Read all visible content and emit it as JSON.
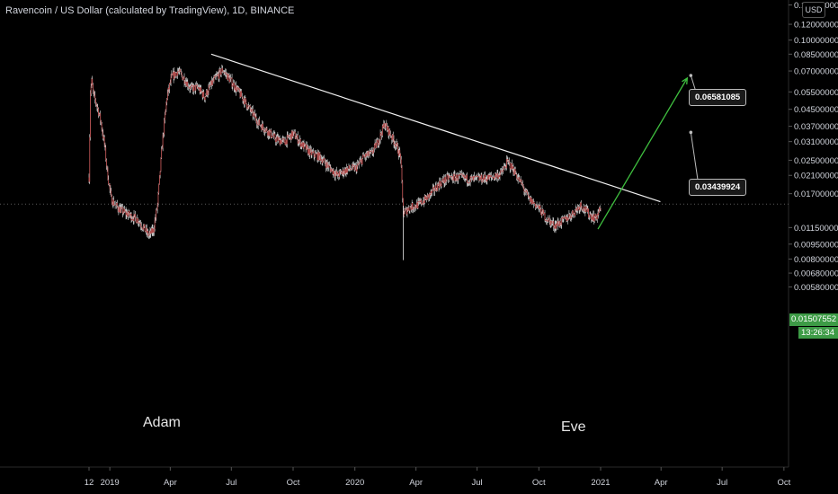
{
  "chart_data": {
    "type": "candlestick",
    "title": "Ravencoin / US Dollar (calculated by TradingView), 1D, BINANCE",
    "currency_badge": "USD",
    "yscale": "log",
    "ylim": [
      0.005,
      0.15
    ],
    "y_ticks": [
      "0.15000000",
      "0.12000000",
      "0.10000000",
      "0.08500000",
      "0.07000000",
      "0.05500000",
      "0.04500000",
      "0.03700000",
      "0.03100000",
      "0.02500000",
      "0.02100000",
      "0.01700000",
      "0.01150000",
      "0.00950000",
      "0.00800000",
      "0.00680000",
      "0.00580000"
    ],
    "x_ticks": [
      "12",
      "2019",
      "Apr",
      "Jul",
      "Oct",
      "2020",
      "Apr",
      "Jul",
      "Oct",
      "2021",
      "Apr",
      "Jul",
      "Oct"
    ],
    "grid": false,
    "series": [
      {
        "points": [
          [
            "2018-12-01",
            0.0205
          ],
          [
            "2018-12-03",
            0.055
          ],
          [
            "2018-12-05",
            0.062
          ],
          [
            "2018-12-08",
            0.052
          ],
          [
            "2018-12-12",
            0.048
          ],
          [
            "2018-12-18",
            0.04
          ],
          [
            "2018-12-24",
            0.03
          ],
          [
            "2018-12-28",
            0.022
          ],
          [
            "2019-01-03",
            0.016
          ],
          [
            "2019-01-10",
            0.0148
          ],
          [
            "2019-01-18",
            0.014
          ],
          [
            "2019-01-26",
            0.0135
          ],
          [
            "2019-02-04",
            0.013
          ],
          [
            "2019-02-12",
            0.0126
          ],
          [
            "2019-02-20",
            0.0115
          ],
          [
            "2019-02-28",
            0.0105
          ],
          [
            "2019-03-07",
            0.0112
          ],
          [
            "2019-03-13",
            0.015
          ],
          [
            "2019-03-20",
            0.03
          ],
          [
            "2019-03-27",
            0.052
          ],
          [
            "2019-04-03",
            0.065
          ],
          [
            "2019-04-12",
            0.07
          ],
          [
            "2019-04-22",
            0.064
          ],
          [
            "2019-05-02",
            0.057
          ],
          [
            "2019-05-12",
            0.058
          ],
          [
            "2019-05-22",
            0.052
          ],
          [
            "2019-06-01",
            0.06
          ],
          [
            "2019-06-10",
            0.066
          ],
          [
            "2019-06-18",
            0.071
          ],
          [
            "2019-06-28",
            0.064
          ],
          [
            "2019-07-10",
            0.056
          ],
          [
            "2019-07-20",
            0.05
          ],
          [
            "2019-08-01",
            0.043
          ],
          [
            "2019-08-12",
            0.038
          ],
          [
            "2019-08-24",
            0.035
          ],
          [
            "2019-09-05",
            0.032
          ],
          [
            "2019-09-18",
            0.031
          ],
          [
            "2019-10-01",
            0.034
          ],
          [
            "2019-10-14",
            0.03
          ],
          [
            "2019-10-28",
            0.027
          ],
          [
            "2019-11-10",
            0.026
          ],
          [
            "2019-11-24",
            0.023
          ],
          [
            "2019-12-06",
            0.021
          ],
          [
            "2019-12-20",
            0.0225
          ],
          [
            "2020-01-04",
            0.023
          ],
          [
            "2020-01-14",
            0.026
          ],
          [
            "2020-01-26",
            0.027
          ],
          [
            "2020-02-06",
            0.032
          ],
          [
            "2020-02-14",
            0.038
          ],
          [
            "2020-02-22",
            0.034
          ],
          [
            "2020-03-02",
            0.03
          ],
          [
            "2020-03-09",
            0.026
          ],
          [
            "2020-03-13",
            0.0135
          ],
          [
            "2020-03-22",
            0.0145
          ],
          [
            "2020-04-05",
            0.015
          ],
          [
            "2020-04-20",
            0.0165
          ],
          [
            "2020-05-05",
            0.019
          ],
          [
            "2020-05-20",
            0.0205
          ],
          [
            "2020-06-05",
            0.0205
          ],
          [
            "2020-06-22",
            0.02
          ],
          [
            "2020-07-06",
            0.0202
          ],
          [
            "2020-07-22",
            0.0205
          ],
          [
            "2020-08-06",
            0.0215
          ],
          [
            "2020-08-15",
            0.0245
          ],
          [
            "2020-08-24",
            0.0225
          ],
          [
            "2020-09-05",
            0.019
          ],
          [
            "2020-09-16",
            0.016
          ],
          [
            "2020-09-28",
            0.0148
          ],
          [
            "2020-10-12",
            0.0128
          ],
          [
            "2020-10-24",
            0.0118
          ],
          [
            "2020-11-06",
            0.0124
          ],
          [
            "2020-11-20",
            0.0135
          ],
          [
            "2020-12-02",
            0.015
          ],
          [
            "2020-12-14",
            0.0135
          ],
          [
            "2020-12-24",
            0.0128
          ],
          [
            "2021-01-02",
            0.0145
          ]
        ]
      }
    ],
    "trendline": {
      "from": [
        "2019-06-01",
        0.085
      ],
      "to": [
        "2021-03-31",
        0.0155
      ]
    },
    "projection_arrow": {
      "from": [
        "2020-12-28",
        0.0113
      ],
      "to": [
        "2021-05-10",
        0.0645
      ]
    },
    "current_price": {
      "value": 0.01507552,
      "label": "0.01507552",
      "countdown": "13:26:34"
    },
    "callouts": [
      {
        "label": "0.06581085",
        "x": "2021-05-10",
        "y": 0.0665
      },
      {
        "label": "0.03439924",
        "x": "2021-05-10",
        "y": 0.0345
      }
    ],
    "annotations": [
      {
        "text": "Adam"
      },
      {
        "text": "Eve"
      }
    ],
    "colors": {
      "background": "#000000",
      "candle_body": "#b04848",
      "candle_wick": "#e8e8e8",
      "trendline": "#f0f0f0",
      "arrow": "#3fbf3f",
      "price_tag": "#3d9b46",
      "axis_text": "#d1d4dc"
    }
  }
}
